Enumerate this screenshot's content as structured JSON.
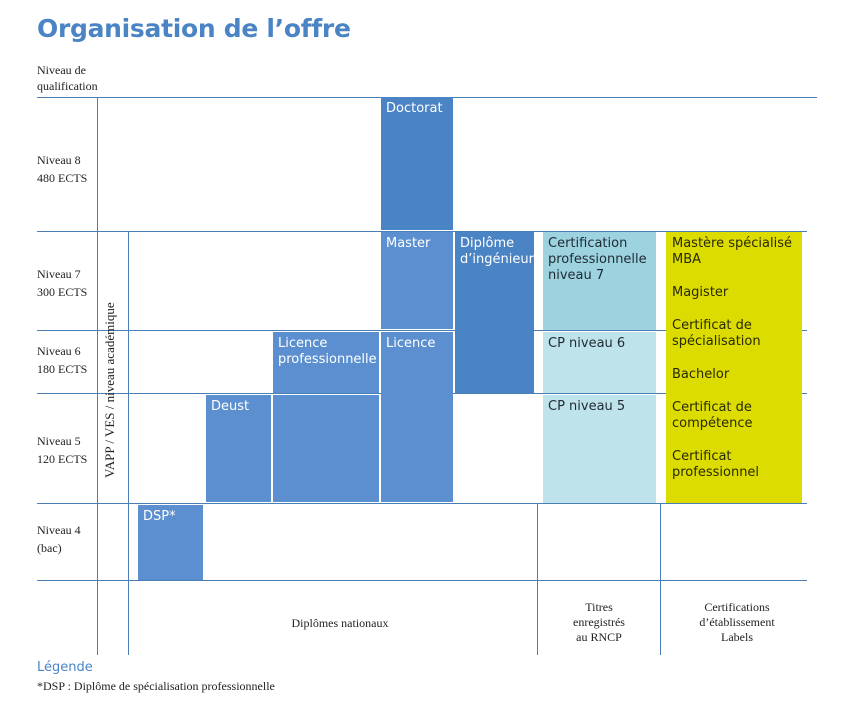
{
  "title": "Organisation de l’offre",
  "axis_header": "Niveau de\nqualification",
  "levels": [
    {
      "label": "Niveau 8\n480 ECTS"
    },
    {
      "label": "Niveau 7\n300 ECTS"
    },
    {
      "label": "Niveau 6\n180 ECTS"
    },
    {
      "label": "Niveau 5\n120 ECTS"
    },
    {
      "label": "Niveau 4\n(bac)"
    }
  ],
  "vertical_label": "VAPP / VES / niveau académique",
  "boxes": {
    "doctorat": "Doctorat",
    "master": "Master",
    "licence": "Licence",
    "licence_pro": "Licence professionnelle",
    "deust": "Deust",
    "dsp": "DSP*",
    "diplome_ing": "Diplôme d’ingénieur",
    "cert_pro7": "Certification professionnelle niveau 7",
    "cp6": "CP niveau 6",
    "cp5": "CP niveau 5"
  },
  "yellow_items": [
    "Mastère spécialisé MBA",
    "Magister",
    "Certificat de spécialisation",
    "Bachelor",
    "Certificat de compétence",
    "Certificat professionnel"
  ],
  "footer": {
    "nationaux": "Diplômes nationaux",
    "rncp": "Titres\nenregistrés\nau RNCP",
    "labels": "Certifications\nd’établissement\nLabels"
  },
  "legend": {
    "title": "Légende",
    "text": "*DSP : Diplôme de spécialisation professionnelle"
  }
}
